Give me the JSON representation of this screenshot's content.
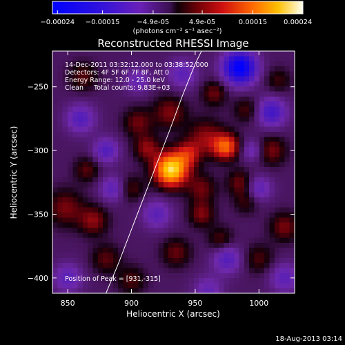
{
  "chart_data": {
    "type": "heatmap",
    "title": "Reconstructed RHESSI Image",
    "xlabel": "Heliocentric X (arcsec)",
    "ylabel": "Heliocentric Y (arcsec)",
    "xlim": [
      838,
      1028
    ],
    "ylim": [
      -412,
      -222
    ],
    "x_ticks": [
      850,
      900,
      950,
      1000
    ],
    "y_ticks": [
      -400,
      -350,
      -300,
      -250
    ],
    "colorbar": {
      "range": [
        -0.00025,
        0.00025
      ],
      "ticks": [
        {
          "value": -0.00024,
          "label": "-0.00024"
        },
        {
          "value": -0.00015,
          "label": "-0.00015"
        },
        {
          "value": -4.9e-05,
          "label": "-4.9e-05"
        },
        {
          "value": 4.9e-05,
          "label": "4.9e-05"
        },
        {
          "value": 0.00015,
          "label": "0.00015"
        },
        {
          "value": 0.00024,
          "label": "0.00024"
        }
      ],
      "unit_label": "(photons cm⁻² s⁻¹ asec⁻²)"
    },
    "annotations": [
      "14-Dec-2011 03:32:12.000 to 03:38:52.000",
      "Detectors: 4F 5F 6F 7F 8F, Att 0",
      "Energy Range: 12.0 - 25.0 keV",
      "Clean     Total counts: 9.83E+03"
    ],
    "peak_label": "Position of Peak = [931,-315]",
    "peak": [
      931,
      -315
    ],
    "limb": [
      [
        880,
        -412
      ],
      [
        890,
        -388
      ],
      [
        900,
        -362
      ],
      [
        910,
        -336
      ],
      [
        920,
        -310
      ],
      [
        930,
        -284
      ],
      [
        940,
        -257
      ],
      [
        950,
        -232
      ],
      [
        955,
        -222
      ]
    ],
    "map_features": [
      {
        "x": 931,
        "y": -315,
        "sigma": 9,
        "amp": 1.0
      },
      {
        "x": 944,
        "y": -303,
        "sigma": 7,
        "amp": 0.35
      },
      {
        "x": 974,
        "y": -297,
        "sigma": 7,
        "amp": 0.6
      },
      {
        "x": 958,
        "y": -290,
        "sigma": 10,
        "amp": 0.3
      },
      {
        "x": 912,
        "y": -298,
        "sigma": 7,
        "amp": 0.3
      },
      {
        "x": 905,
        "y": -278,
        "sigma": 8,
        "amp": 0.25
      },
      {
        "x": 930,
        "y": -270,
        "sigma": 9,
        "amp": 0.28
      },
      {
        "x": 965,
        "y": -255,
        "sigma": 7,
        "amp": 0.25
      },
      {
        "x": 955,
        "y": -330,
        "sigma": 8,
        "amp": 0.25
      },
      {
        "x": 955,
        "y": -350,
        "sigma": 7,
        "amp": 0.28
      },
      {
        "x": 985,
        "y": -325,
        "sigma": 7,
        "amp": 0.25
      },
      {
        "x": 1010,
        "y": -300,
        "sigma": 8,
        "amp": 0.27
      },
      {
        "x": 1020,
        "y": -360,
        "sigma": 8,
        "amp": 0.27
      },
      {
        "x": 848,
        "y": -345,
        "sigma": 10,
        "amp": 0.27
      },
      {
        "x": 870,
        "y": -355,
        "sigma": 8,
        "amp": 0.3
      },
      {
        "x": 865,
        "y": -315,
        "sigma": 7,
        "amp": 0.22
      },
      {
        "x": 900,
        "y": -330,
        "sigma": 7,
        "amp": 0.2
      },
      {
        "x": 880,
        "y": -385,
        "sigma": 8,
        "amp": 0.22
      },
      {
        "x": 935,
        "y": -380,
        "sigma": 8,
        "amp": 0.24
      },
      {
        "x": 970,
        "y": -370,
        "sigma": 7,
        "amp": 0.22
      },
      {
        "x": 1000,
        "y": -385,
        "sigma": 8,
        "amp": 0.2
      },
      {
        "x": 990,
        "y": -340,
        "sigma": 7,
        "amp": 0.18
      },
      {
        "x": 862,
        "y": -242,
        "sigma": 8,
        "amp": 0.22
      },
      {
        "x": 1015,
        "y": -245,
        "sigma": 7,
        "amp": 0.18
      },
      {
        "x": 990,
        "y": -268,
        "sigma": 7,
        "amp": 0.2
      },
      {
        "x": 900,
        "y": -402,
        "sigma": 8,
        "amp": 0.2
      },
      {
        "x": 985,
        "y": -235,
        "sigma": 9,
        "amp": -0.9
      },
      {
        "x": 1010,
        "y": -270,
        "sigma": 8,
        "amp": -0.45
      },
      {
        "x": 860,
        "y": -275,
        "sigma": 8,
        "amp": -0.35
      },
      {
        "x": 880,
        "y": -300,
        "sigma": 7,
        "amp": -0.35
      },
      {
        "x": 885,
        "y": -330,
        "sigma": 7,
        "amp": -0.3
      },
      {
        "x": 920,
        "y": -350,
        "sigma": 8,
        "amp": -0.3
      },
      {
        "x": 975,
        "y": -385,
        "sigma": 8,
        "amp": -0.35
      },
      {
        "x": 1000,
        "y": -330,
        "sigma": 7,
        "amp": -0.3
      },
      {
        "x": 940,
        "y": -240,
        "sigma": 8,
        "amp": -0.3
      },
      {
        "x": 1020,
        "y": -400,
        "sigma": 8,
        "amp": -0.3
      },
      {
        "x": 850,
        "y": -400,
        "sigma": 8,
        "amp": -0.3
      },
      {
        "x": 960,
        "y": -410,
        "sigma": 8,
        "amp": -0.25
      },
      {
        "x": 995,
        "y": -300,
        "sigma": 6,
        "amp": -0.25
      },
      {
        "x": 905,
        "y": -245,
        "sigma": 7,
        "amp": -0.25
      }
    ]
  },
  "footer": {
    "timestamp": "18-Aug-2013 03:14"
  }
}
